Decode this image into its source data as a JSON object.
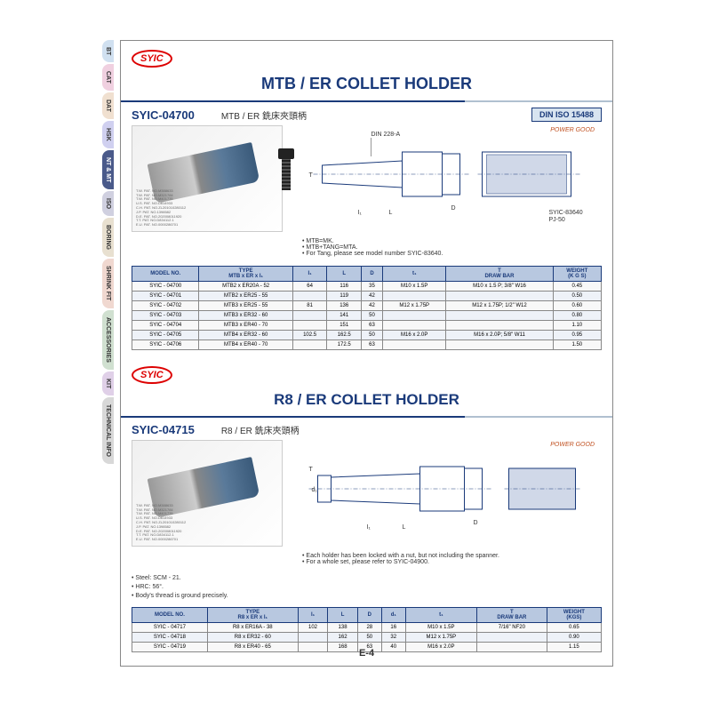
{
  "tabs": [
    {
      "label": "BT",
      "bg": "#d0e0f0"
    },
    {
      "label": "CAT",
      "bg": "#f0d0e0"
    },
    {
      "label": "DAT",
      "bg": "#f0e0d0"
    },
    {
      "label": "HSK",
      "bg": "#d0d0f0"
    },
    {
      "label": "NT & MT",
      "bg": "#4a5a8a",
      "color": "#fff"
    },
    {
      "label": "ISO",
      "bg": "#d0d0e0"
    },
    {
      "label": "BORING",
      "bg": "#e8e0d0"
    },
    {
      "label": "SHRINK FIT",
      "bg": "#f0d8d0"
    },
    {
      "label": "ACCESSORIES",
      "bg": "#d0e0d0"
    },
    {
      "label": "KIT",
      "bg": "#e0d0e8"
    },
    {
      "label": "TECHNICAL INFO",
      "bg": "#d8d8d8"
    }
  ],
  "brand": "SYIC",
  "section1": {
    "title": "MTB / ER COLLET HOLDER",
    "code": "SYIC-04700",
    "subtitle": "MTB / ER 銑床夾頭柄",
    "iso": "DIN ISO 15488",
    "din_ref": "DIN 228-A",
    "diagram_label": "SYIC-83640\nPJ-50",
    "power": "POWER GOOD",
    "notes": [
      "• MTB=MK.",
      "• MTB+TANG=MTA.",
      "• For Tang, please see model number SYIC-83640."
    ],
    "patents": [
      "T.W. PAT. NO.M388633",
      "T.W. PAT. NO.M321784",
      "T.W. PAT. NO.M401735",
      "U.S. PAT. NO.D614933",
      "C.H. PAT. NO.ZL201010280112",
      "J.P. PAT. NO.1398582",
      "D.E. PAT. NO.202008011920",
      "T.T. PAT. NO.D834112.1",
      "E.U. PAT. NO.0000286701"
    ],
    "table": {
      "headers": [
        "MODEL NO.",
        "TYPE\nMTB x ER x I₁",
        "I₁",
        "L",
        "D",
        "t₁",
        "T\nDRAW BAR",
        "WEIGHT\n(K G S)"
      ],
      "rows": [
        [
          "SYIC - 04700",
          "MTB2 x ER20A - 52",
          "64",
          "116",
          "35",
          "M10 x 1.5P",
          "M10 x 1.5 P; 3/8\" W16",
          "0.45"
        ],
        [
          "SYIC - 04701",
          "MTB2 x ER25 - 55",
          "",
          "119",
          "42",
          "",
          "",
          "0.50"
        ],
        [
          "SYIC - 04702",
          "MTB3 x ER25 - 55",
          "81",
          "136",
          "42",
          "M12 x 1.75P",
          "M12 x 1.75P; 1/2\" W12",
          "0.60"
        ],
        [
          "SYIC - 04703",
          "MTB3 x ER32 - 60",
          "",
          "141",
          "50",
          "",
          "",
          "0.80"
        ],
        [
          "SYIC - 04704",
          "MTB3 x ER40 - 70",
          "",
          "151",
          "63",
          "",
          "",
          "1.10"
        ],
        [
          "SYIC - 04705",
          "MTB4 x ER32 - 60",
          "102.5",
          "162.5",
          "50",
          "M16 x 2.0P",
          "M16 x 2.0P; 5/8\" W11",
          "0.95"
        ],
        [
          "SYIC - 04706",
          "MTB4 x ER40 - 70",
          "",
          "172.5",
          "63",
          "",
          "",
          "1.50"
        ]
      ]
    }
  },
  "section2": {
    "title": "R8 / ER COLLET HOLDER",
    "code": "SYIC-04715",
    "subtitle": "R8 / ER 銑床夾頭柄",
    "power": "POWER GOOD",
    "material": [
      "• Steel: SCM - 21.",
      "• HRC: 56°.",
      "• Body's thread is ground precisely."
    ],
    "notes": [
      "• Each holder has been locked with a nut, but not including the spanner.",
      "• For a whole set, please refer to SYIC-04900."
    ],
    "patents": [
      "T.W. PAT. NO.M388633",
      "T.W. PAT. NO.M321784",
      "T.W. PAT. NO.M401735",
      "U.S. PAT. NO.D614933",
      "C.H. PAT. NO.ZL201010280112",
      "J.P. PAT. NO.1398582",
      "D.E. PAT. NO.202008011920",
      "T.T. PAT. NO.D834112.1",
      "E.U. PAT. NO.0000286701"
    ],
    "table": {
      "headers": [
        "MODEL NO.",
        "TYPE\nR8 x ER x I₁",
        "I₁",
        "L",
        "D",
        "d₁",
        "t₁",
        "T\nDRAW BAR",
        "WEIGHT\n(KGS)"
      ],
      "rows": [
        [
          "SYIC - 04717",
          "R8 x ER16A - 38",
          "102",
          "138",
          "28",
          "16",
          "M10 x 1.5P",
          "7/16\" NF20",
          "0.65"
        ],
        [
          "SYIC - 04718",
          "R8 x ER32 - 60",
          "",
          "162",
          "50",
          "32",
          "M12 x 1.75P",
          "",
          "0.90"
        ],
        [
          "SYIC - 04719",
          "R8 x ER40 - 65",
          "",
          "168",
          "63",
          "40",
          "M16 x 2.0P",
          "",
          "1.15"
        ]
      ]
    }
  },
  "page_num": "E-4",
  "colors": {
    "primary": "#1a3a7a",
    "header_bg": "#b8c8e0",
    "tab_active": "#4a5a8a"
  }
}
